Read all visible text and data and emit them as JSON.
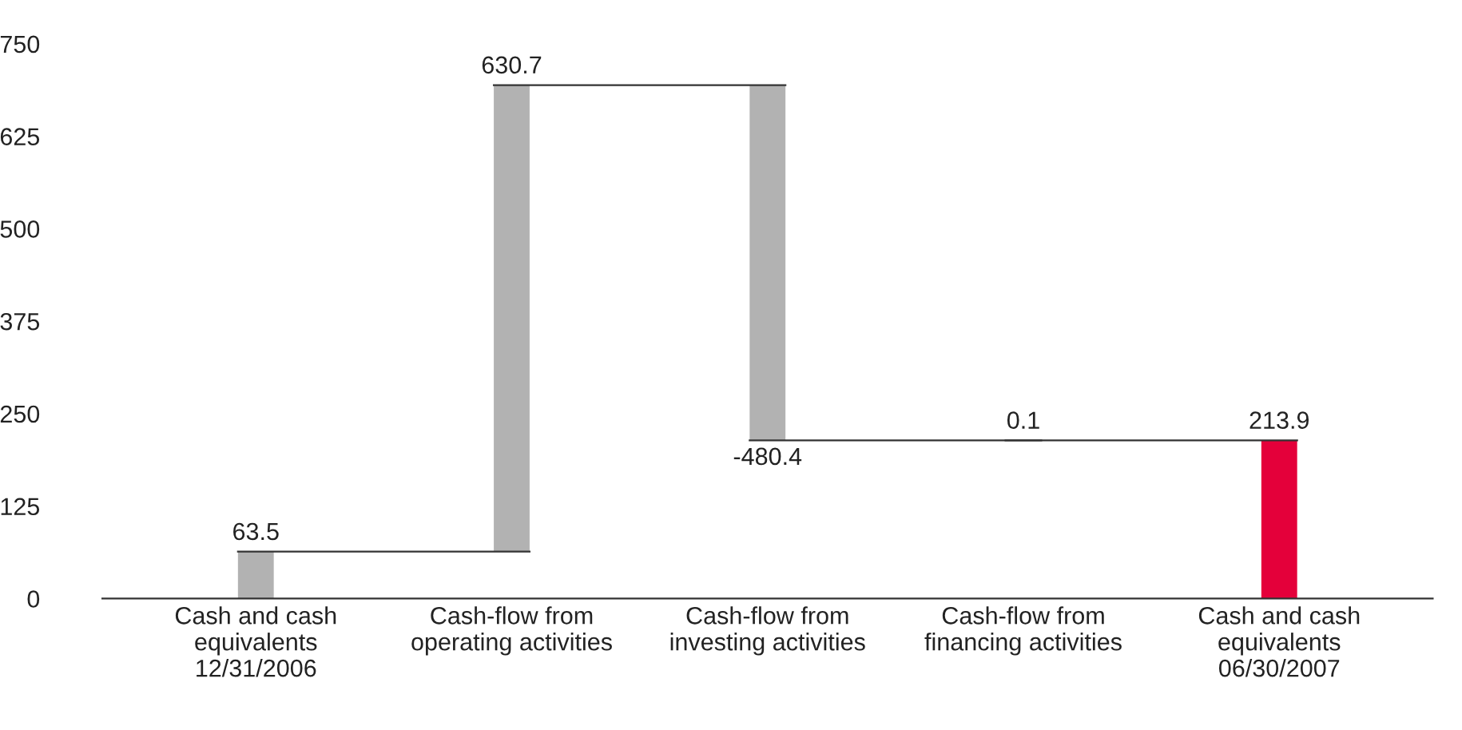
{
  "chart_data": {
    "type": "bar",
    "categories": [
      "Cash and cash\nequivalents\n12/31/2006",
      "Cash-flow from\noperating activities",
      "Cash-flow from\ninvesting activities",
      "Cash-flow from\nfinancing activities",
      "Cash and cash\nequivalents\n06/30/2007"
    ],
    "values": [
      63.5,
      630.7,
      -480.4,
      0.1,
      213.9
    ],
    "base": [
      0,
      63.5,
      694.2,
      213.8,
      0
    ],
    "colors": [
      "#b2b2b2",
      "#b2b2b2",
      "#b2b2b2",
      "#b2b2b2",
      "#e4003a"
    ],
    "ylim": [
      0,
      750
    ],
    "yticks": [
      0,
      125,
      250,
      375,
      500,
      625,
      750
    ],
    "data_labels": true,
    "grid": false,
    "legend": false
  }
}
